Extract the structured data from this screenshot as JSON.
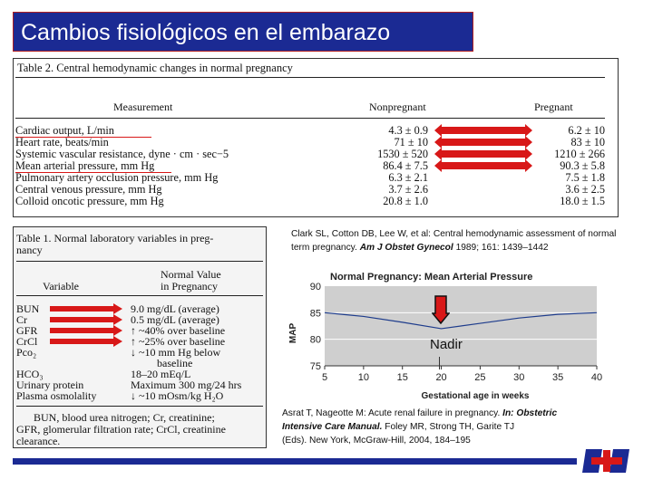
{
  "slide": {
    "title": "Cambios fisiológicos en el embarazo",
    "accent_color": "#1b2a93",
    "arrow_color": "#d81818",
    "logo_text": "H+B"
  },
  "table2": {
    "caption": "Table 2.  Central hemodynamic changes in normal pregnancy",
    "headers": {
      "measurement": "Measurement",
      "nonpregnant": "Nonpregnant",
      "pregnant": "Pregnant"
    },
    "rows": [
      {
        "measurement": "Cardiac output, L/min",
        "nonpregnant": "4.3 ± 0.9",
        "pregnant": "6.2 ± 10",
        "highlighted": true
      },
      {
        "measurement": "Heart rate, beats/min",
        "nonpregnant": "71 ± 10",
        "pregnant": "83 ± 10",
        "highlighted": true
      },
      {
        "measurement": "Systemic vascular resistance, dyne · cm · sec−5",
        "nonpregnant": "1530 ± 520",
        "pregnant": "1210 ± 266",
        "highlighted": true
      },
      {
        "measurement": "Mean arterial pressure, mm Hg",
        "nonpregnant": "86.4 ± 7.5",
        "pregnant": "90.3 ± 5.8",
        "highlighted": true
      },
      {
        "measurement": "Pulmonary artery occlusion pressure, mm Hg",
        "nonpregnant": "6.3 ± 2.1",
        "pregnant": "7.5 ± 1.8",
        "highlighted": false
      },
      {
        "measurement": "Central venous pressure, mm Hg",
        "nonpregnant": "3.7 ± 2.6",
        "pregnant": "3.6 ± 2.5",
        "highlighted": false
      },
      {
        "measurement": "Colloid oncotic pressure, mm Hg",
        "nonpregnant": "20.8 ± 1.0",
        "pregnant": "18.0 ± 1.5",
        "highlighted": false
      }
    ]
  },
  "table1": {
    "caption_line1": "Table 1.  Normal laboratory variables in preg-",
    "caption_line2": "nancy",
    "headers": {
      "variable": "Variable",
      "normal_line1": "Normal Value",
      "normal_line2": "in Pregnancy"
    },
    "rows": [
      {
        "variable": "BUN",
        "value": "9.0 mg/dL (average)"
      },
      {
        "variable": "Cr",
        "value": "0.5 mg/dL (average)"
      },
      {
        "variable": "GFR",
        "value": "↑ ~40% over baseline"
      },
      {
        "variable": "CrCl",
        "value": "↑ ~25% over baseline"
      },
      {
        "variable": "Pco₂",
        "value": "↓ ~10 mm Hg below"
      },
      {
        "variable": "",
        "value": "baseline"
      },
      {
        "variable": "HCO₃",
        "value": "18–20 mEq/L"
      },
      {
        "variable": "Urinary protein",
        "value": "Maximum 300 mg/24 hrs"
      },
      {
        "variable": "Plasma osmolality",
        "value": "↓ ~10 mOsm/kg H₂O"
      }
    ],
    "footnote_lines": [
      "BUN, blood urea nitrogen; Cr, creatinine;",
      "GFR, glomerular filtration rate; CrCl, creatinine",
      "clearance."
    ]
  },
  "citation_top": {
    "line1": "Clark SL, Cotton DB, Lee W, et al: Central hemodynamic assessment of normal",
    "line2_pre": "term pregnancy. ",
    "line2_journal": "Am J Obstet Gynecol",
    "line2_post": " 1989; 161: 1439–1442"
  },
  "citation_bottom": {
    "line1_pre": "Asrat T, Nageotte M: Acute renal failure in pregnancy. ",
    "line1_em": "In: Obstetric",
    "line2_em": "Intensive Care Manual.",
    "line2_post": " Foley MR, Strong TH, Garite TJ",
    "line3": "(Eds). New York, McGraw-Hill, 2004, 184–195"
  },
  "annotation": {
    "label": "Nadir"
  },
  "chart_data": {
    "type": "line",
    "title": "Normal Pregnancy: Mean Arterial Pressure",
    "xlabel": "Gestational age in weeks",
    "ylabel": "MAP",
    "x": [
      5,
      10,
      15,
      20,
      25,
      30,
      35,
      40
    ],
    "y": [
      85,
      84.3,
      83.2,
      82,
      83,
      84,
      84.7,
      85
    ],
    "xticks": [
      5,
      10,
      15,
      20,
      25,
      30,
      35,
      40
    ],
    "yticks": [
      75,
      80,
      85,
      90
    ],
    "xlim": [
      5,
      40
    ],
    "ylim": [
      75,
      90
    ],
    "grid": true,
    "colors": {
      "plot_background": "#cfcfcf",
      "line": "#1e3c8c"
    }
  }
}
